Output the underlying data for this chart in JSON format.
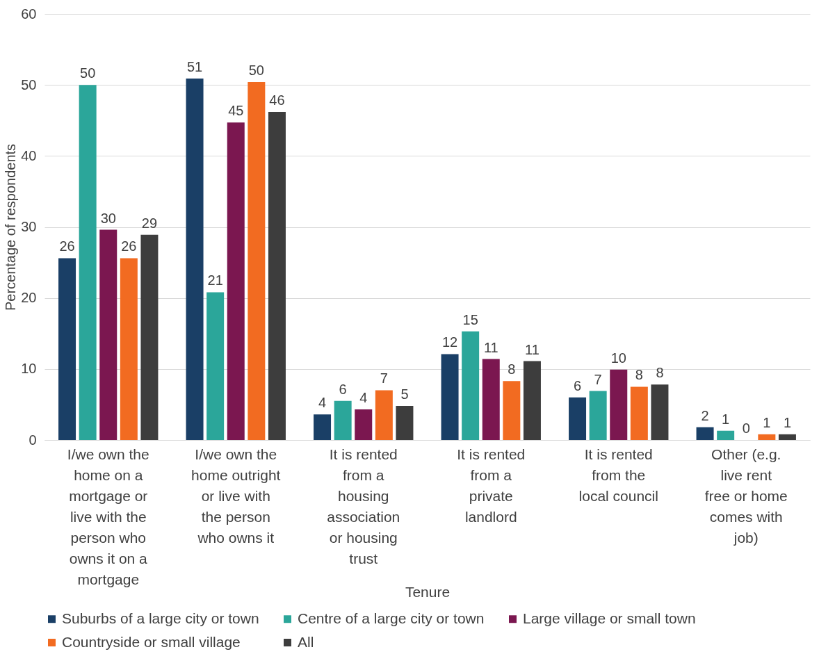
{
  "chart_data": {
    "type": "bar",
    "xlabel": "Tenure",
    "ylabel": "Percentage of respondents",
    "categories": [
      "I/we own the home on a mortgage or live with the person who owns it on a mortgage",
      "I/we own the home outright or live with the person who owns it",
      "It is rented from a housing association or housing trust",
      "It is rented from a private landlord",
      "It is rented from the local council",
      "Other (e.g. live rent free or home comes with job)"
    ],
    "series": [
      {
        "name": "Suburbs of a large city or town",
        "color": "#1a3f66",
        "values": [
          25.6,
          50.9,
          3.6,
          12.1,
          6.0,
          1.8
        ],
        "value_labels": [
          "26",
          "51",
          "4",
          "12",
          "6",
          "2"
        ]
      },
      {
        "name": "Centre of a large city or town",
        "color": "#2ba69a",
        "values": [
          50.0,
          20.8,
          5.5,
          15.3,
          6.9,
          1.3
        ],
        "value_labels": [
          "50",
          "21",
          "6",
          "15",
          "7",
          "1"
        ]
      },
      {
        "name": "Large village or small town",
        "color": "#7b1750",
        "values": [
          29.6,
          44.7,
          4.3,
          11.4,
          9.9,
          0
        ],
        "value_labels": [
          "30",
          "45",
          "4",
          "11",
          "10",
          "0"
        ]
      },
      {
        "name": "Countryside or small village",
        "color": "#f26b21",
        "values": [
          25.6,
          50.4,
          7.0,
          8.3,
          7.5,
          0.8
        ],
        "value_labels": [
          "26",
          "50",
          "7",
          "8",
          "8",
          "1"
        ]
      },
      {
        "name": "All",
        "color": "#3d3d3d",
        "values": [
          28.9,
          46.2,
          4.8,
          11.1,
          7.8,
          0.8
        ],
        "value_labels": [
          "29",
          "46",
          "5",
          "11",
          "8",
          "1"
        ]
      }
    ],
    "ylim": [
      0,
      60
    ],
    "yticks": [
      0,
      10,
      20,
      30,
      40,
      50,
      60
    ],
    "grid": "y",
    "legend": "bottom"
  }
}
